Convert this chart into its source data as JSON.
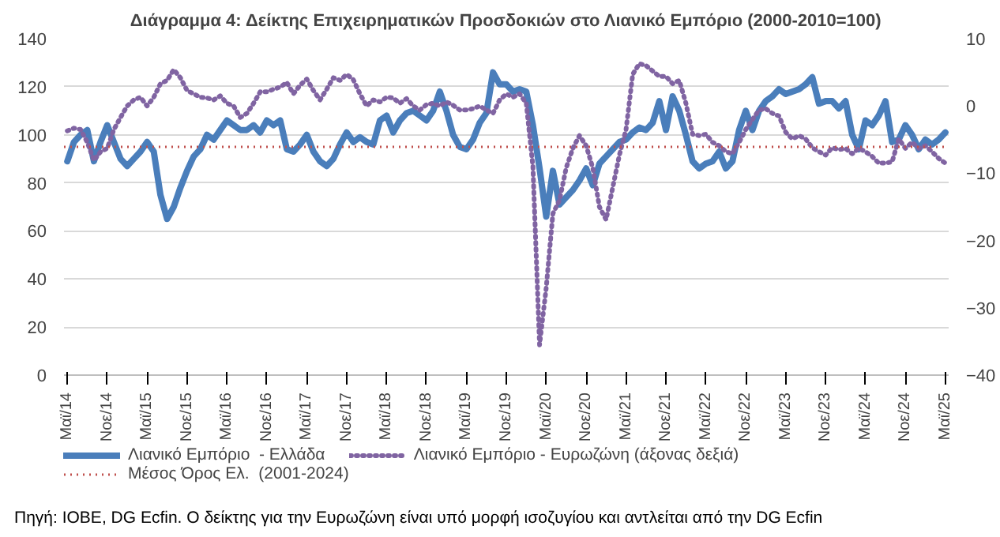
{
  "chart_data": {
    "type": "line",
    "title": "Διάγραμμα 4: Δείκτης Επιχειρηματικών Προσδοκιών στο Λιανικό Εμπόριο (2000-2010=100)",
    "categories": [
      "Μαϊ/14",
      null,
      null,
      null,
      null,
      null,
      "Νοε/14",
      null,
      null,
      null,
      null,
      null,
      "Μαϊ/15",
      null,
      null,
      null,
      null,
      null,
      "Νοε/15",
      null,
      null,
      null,
      null,
      null,
      "Μαϊ/16",
      null,
      null,
      null,
      null,
      null,
      "Νοε/16",
      null,
      null,
      null,
      null,
      null,
      "Μαϊ/17",
      null,
      null,
      null,
      null,
      null,
      "Νοε/17",
      null,
      null,
      null,
      null,
      null,
      "Μαϊ/18",
      null,
      null,
      null,
      null,
      null,
      "Νοε/18",
      null,
      null,
      null,
      null,
      null,
      "Μαϊ/19",
      null,
      null,
      null,
      null,
      null,
      "Νοε/19",
      null,
      null,
      null,
      null,
      null,
      "Μαϊ/20",
      null,
      null,
      null,
      null,
      null,
      "Νοε/20",
      null,
      null,
      null,
      null,
      null,
      "Μαϊ/21",
      null,
      null,
      null,
      null,
      null,
      "Νοε/21",
      null,
      null,
      null,
      null,
      null,
      "Μαϊ/22",
      null,
      null,
      null,
      null,
      null,
      "Νοε/22",
      null,
      null,
      null,
      null,
      null,
      "Μαϊ/23",
      null,
      null,
      null,
      null,
      null,
      "Νοε/23",
      null,
      null,
      null,
      null,
      null,
      "Μαϊ/24",
      null,
      null,
      null,
      null,
      null,
      "Νοε/24",
      null,
      null,
      null,
      null,
      null,
      "Μαϊ/25"
    ],
    "series": [
      {
        "name": "Λιανικό Εμπόριο  - Ελλάδα",
        "color": "#4a7ebb",
        "line_style": "solid",
        "values": [
          89,
          97,
          100,
          102,
          89,
          97,
          104,
          97,
          90,
          87,
          90,
          93,
          97,
          93,
          75,
          65,
          70,
          78,
          85,
          91,
          94,
          100,
          98,
          102,
          106,
          104,
          102,
          102,
          104,
          101,
          106,
          104,
          106,
          94,
          93,
          96,
          100,
          93,
          89,
          87,
          90,
          96,
          101,
          97,
          99,
          97,
          96,
          106,
          108,
          101,
          106,
          109,
          110,
          108,
          106,
          110,
          118,
          110,
          100,
          95,
          94,
          98,
          105,
          109,
          126,
          121,
          121,
          118,
          119,
          118,
          104,
          86,
          66,
          85,
          71,
          74,
          77,
          81,
          86,
          79,
          88,
          91,
          94,
          97,
          98,
          101,
          103,
          102,
          105,
          114,
          102,
          116,
          110,
          100,
          89,
          86,
          88,
          89,
          93,
          86,
          89,
          102,
          110,
          102,
          110,
          114,
          116,
          119,
          117,
          118,
          119,
          121,
          124,
          113,
          114,
          114,
          111,
          114,
          100,
          94,
          106,
          104,
          108,
          114,
          97,
          98,
          104,
          100,
          94,
          98,
          96,
          98,
          101
        ]
      },
      {
        "name": "Λιανικό Εμπόριο - Ευρωζώνη (άξονας δεξιά)",
        "color": "#8064a2",
        "line_style": "dotted",
        "axis": "y2",
        "values": [
          -3.7,
          -3.3,
          -3.5,
          -5.4,
          -8.1,
          -6.8,
          -6.3,
          -3.5,
          -1.7,
          0,
          0.9,
          1.3,
          0,
          1.3,
          3.3,
          3.8,
          5.4,
          4.2,
          2.3,
          1.8,
          1.3,
          1.2,
          0.9,
          1.5,
          0.4,
          0,
          -1.7,
          -1.1,
          0.4,
          2.1,
          2.1,
          2.5,
          2.8,
          3.5,
          1.8,
          3.1,
          4,
          2.3,
          0.9,
          2.5,
          4.2,
          3.8,
          4.7,
          3.9,
          1.8,
          0,
          0.9,
          0.6,
          1.3,
          1.2,
          0.4,
          1.1,
          0,
          -0.6,
          0.2,
          0.4,
          0,
          0.6,
          0.1,
          -0.6,
          -0.6,
          -0.4,
          0,
          -0.6,
          -1.1,
          0.9,
          1.8,
          1.3,
          1.8,
          0.4,
          -9,
          -35.5,
          -27,
          -16,
          -14,
          -9.2,
          -6.3,
          -4.4,
          -5.9,
          -9.2,
          -15,
          -16.9,
          -12.1,
          -7.3,
          -3.5,
          4.7,
          6.3,
          6,
          5.2,
          4.4,
          4.4,
          3.3,
          3.8,
          0.4,
          -4.2,
          -4.4,
          -4.2,
          -5.4,
          -5.9,
          -6.8,
          -7.1,
          -5.4,
          -3.5,
          -2,
          -0.6,
          -0.4,
          -1.1,
          -1.5,
          -3.9,
          -4.9,
          -4.4,
          -4.9,
          -6.2,
          -6.8,
          -7.3,
          -6.2,
          -6.5,
          -6.3,
          -7.1,
          -6.3,
          -6.8,
          -7.5,
          -8.5,
          -8.5,
          -8.3,
          -4.9,
          -6.3,
          -5.4,
          -6.3,
          -5.9,
          -6.8,
          -7.8,
          -8.5
        ]
      }
    ],
    "ylim": [
      0,
      140
    ],
    "yticks": [
      0,
      20,
      40,
      60,
      80,
      100,
      120,
      140
    ],
    "y2lim": [
      -40,
      10
    ],
    "y2ticks": [
      -40,
      -30,
      -20,
      -10,
      0,
      10
    ],
    "ref_lines": [
      {
        "axis": "y",
        "value": 95,
        "label": "Μέσος Όρος Ελ.  (2001-2024)",
        "color": "#c0504d",
        "line_style": "dotted"
      }
    ],
    "grid": "y",
    "legend": "bottom",
    "annotations": [
      "Πηγή: IOBE, DG Ecfin. Ο δείκτης για την Ευρωζώνη είναι υπό μορφή ισοζυγίου και αντλείται από την DG Ecfin"
    ]
  }
}
